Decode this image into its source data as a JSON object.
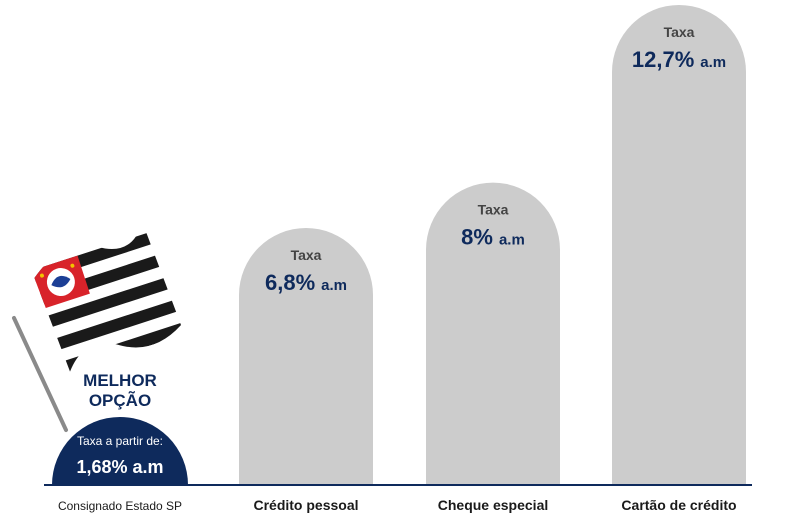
{
  "chart_data": {
    "type": "bar",
    "categories": [
      "Consignado Estado SP",
      "Crédito pessoal",
      "Cheque especial",
      "Cartão de crédito"
    ],
    "values": [
      1.68,
      6.8,
      8,
      12.7
    ],
    "unit": "% a.m",
    "bar_prefix": "Taxa",
    "value_labels": [
      "1,68%",
      "6,8%",
      "8%",
      "12,7%"
    ],
    "value_suffix": "a.m",
    "highlight": {
      "index": 0,
      "badge_line1": "MELHOR",
      "badge_line2": "OPÇÃO",
      "prefix": "Taxa a partir de:",
      "value_label": "1,68% a.m",
      "icon": "sao-paulo-flag-icon"
    },
    "colors": {
      "bar": "#cccccc",
      "highlight": "#0e2a5c",
      "text": "#0e2a5c"
    }
  }
}
